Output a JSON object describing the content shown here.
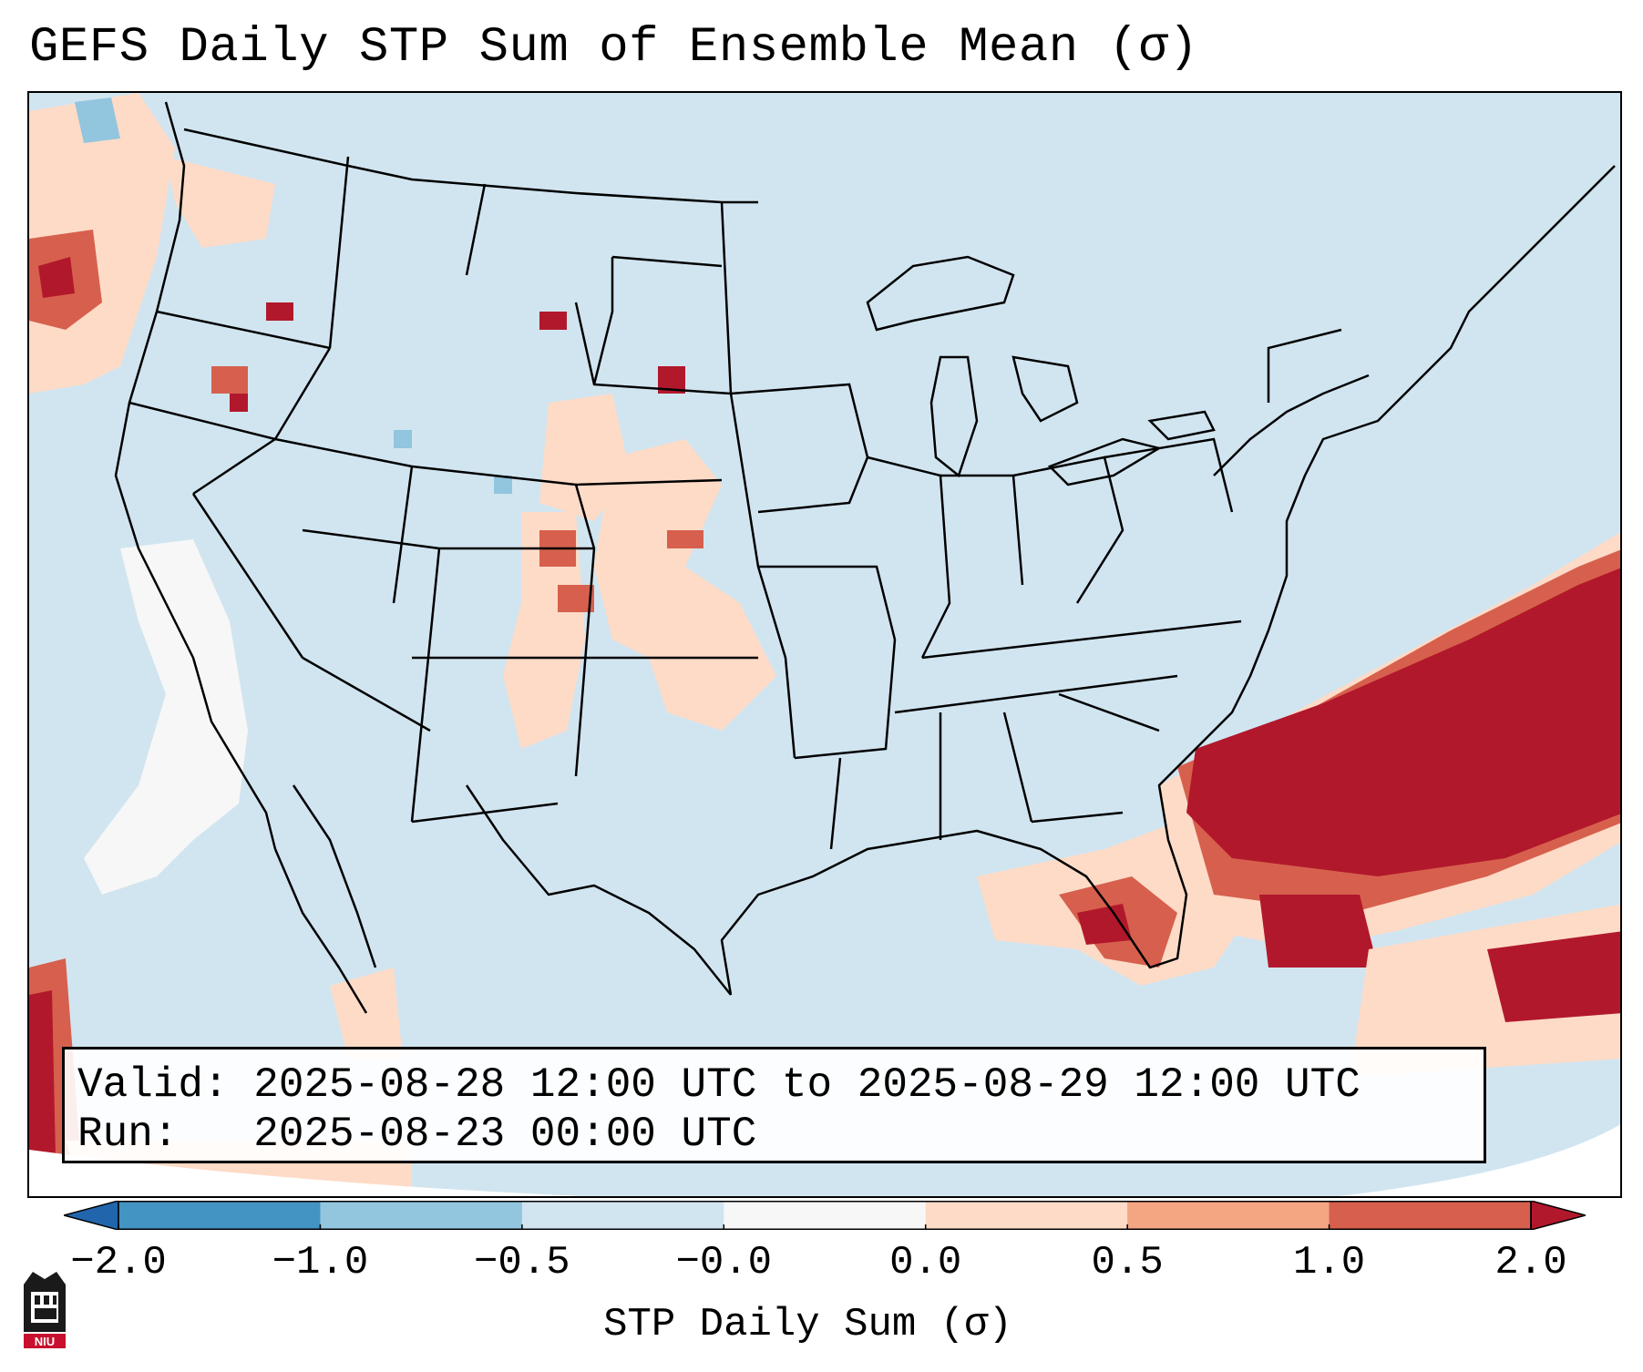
{
  "title": "GEFS Daily STP Sum of Ensemble Mean (σ)",
  "valid_line": "Valid: 2025-08-28 12:00 UTC to 2025-08-29 12:00 UTC",
  "run_line": "Run:   2025-08-23 00:00 UTC",
  "colorbar": {
    "label": "STP Daily Sum (σ)",
    "ticks": [
      "−2.0",
      "−1.0",
      "−0.5",
      "−0.0",
      "0.0",
      "0.5",
      "1.0",
      "2.0"
    ],
    "colors": [
      "#2166ac",
      "#4393c3",
      "#92c5de",
      "#d1e5f0",
      "#f7f7f7",
      "#fddbc7",
      "#f4a582",
      "#d6604d",
      "#b2182b"
    ]
  },
  "map": {
    "region": "Continental United States",
    "projection": "Lambert Conformal",
    "features": [
      "state-borders",
      "coastlines",
      "great-lakes"
    ],
    "highlight": "strong positive STP anomaly over western Atlantic east of Florida"
  },
  "logo": "NIU"
}
